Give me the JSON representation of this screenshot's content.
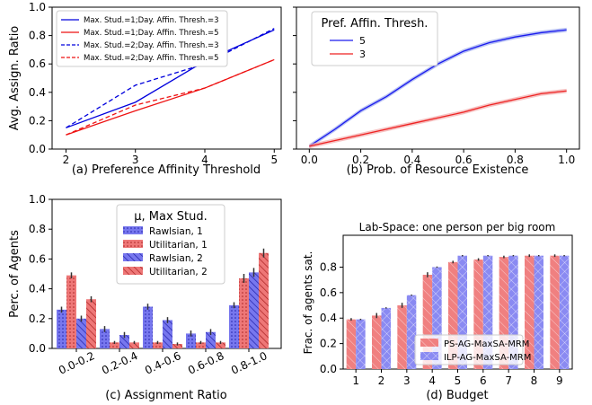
{
  "chart_data": [
    {
      "type": "line",
      "panel_label": "(a)",
      "xlabel": "(a) Preference Affinity Threshold",
      "ylabel": "Avg. Assign. Ratio",
      "xlim": [
        1.8,
        5.1
      ],
      "ylim": [
        0.0,
        1.0
      ],
      "xticks": [
        "2",
        "3",
        "4",
        "5"
      ],
      "yticks": [
        "0.0",
        "0.2",
        "0.4",
        "0.6",
        "0.8",
        "1.0"
      ],
      "x": [
        2,
        3,
        4,
        5
      ],
      "legend_position": "upper-left",
      "series": [
        {
          "name": "Max. Stud.=1;Day. Affin. Thresh.=3",
          "color": "#0000dd",
          "dash": "solid",
          "values": [
            0.15,
            0.33,
            0.62,
            0.84
          ]
        },
        {
          "name": "Max. Stud.=1;Day. Affin. Thresh.=5",
          "color": "#ee1111",
          "dash": "solid",
          "values": [
            0.1,
            0.27,
            0.43,
            0.63
          ]
        },
        {
          "name": "Max. Stud.=2;Day. Affin. Thresh.=3",
          "color": "#0000dd",
          "dash": "dashed",
          "values": [
            0.15,
            0.45,
            0.6,
            0.85
          ]
        },
        {
          "name": "Max. Stud.=2;Day. Affin. Thresh.=5",
          "color": "#ee1111",
          "dash": "dashed",
          "values": [
            0.1,
            0.31,
            0.43,
            0.63
          ]
        }
      ]
    },
    {
      "type": "line",
      "panel_label": "(b)",
      "xlabel": "(b) Prob. of Resource Existence",
      "legend_title": "Pref. Affin. Thresh.",
      "legend_position": "upper-left",
      "xlim": [
        -0.05,
        1.05
      ],
      "ylim": [
        0.0,
        1.0
      ],
      "xticks": [
        "0.0",
        "0.2",
        "0.4",
        "0.6",
        "0.8",
        "1.0"
      ],
      "x": [
        0.0,
        0.1,
        0.2,
        0.3,
        0.4,
        0.5,
        0.6,
        0.7,
        0.8,
        0.9,
        1.0
      ],
      "series": [
        {
          "name": "5",
          "color": "#1a1aee",
          "band": "#9aa6ee",
          "values": [
            0.02,
            0.14,
            0.27,
            0.37,
            0.49,
            0.6,
            0.69,
            0.75,
            0.79,
            0.82,
            0.84
          ]
        },
        {
          "name": "3",
          "color": "#ee2222",
          "band": "#f2aaaa",
          "values": [
            0.02,
            0.06,
            0.1,
            0.14,
            0.18,
            0.22,
            0.26,
            0.31,
            0.35,
            0.39,
            0.41
          ]
        }
      ]
    },
    {
      "type": "bar",
      "panel_label": "(c)",
      "xlabel": "(c) Assignment Ratio",
      "ylabel": "Perc. of Agents",
      "ylim": [
        0.0,
        1.0
      ],
      "yticks": [
        "0.0",
        "0.2",
        "0.4",
        "0.6",
        "0.8",
        "1.0"
      ],
      "categories": [
        "0.0-0.2",
        "0.2-0.4",
        "0.4-0.6",
        "0.6-0.8",
        "0.8-1.0"
      ],
      "legend_title": "μ, Max Stud.",
      "legend_position": "upper-center",
      "series": [
        {
          "name": "Rawlsian, 1",
          "color": "#7777ee",
          "hatch": "dots",
          "values": [
            0.26,
            0.13,
            0.28,
            0.1,
            0.29
          ],
          "err": [
            0.02,
            0.02,
            0.02,
            0.02,
            0.02
          ]
        },
        {
          "name": "Utilitarian, 1",
          "color": "#ee7777",
          "hatch": "dots",
          "values": [
            0.49,
            0.04,
            0.04,
            0.04,
            0.47
          ],
          "err": [
            0.02,
            0.01,
            0.01,
            0.01,
            0.03
          ]
        },
        {
          "name": "Rawlsian, 2",
          "color": "#7777ee",
          "hatch": "diag",
          "values": [
            0.2,
            0.09,
            0.19,
            0.11,
            0.51
          ],
          "err": [
            0.02,
            0.02,
            0.02,
            0.02,
            0.03
          ]
        },
        {
          "name": "Utilitarian, 2",
          "color": "#ee7777",
          "hatch": "diag",
          "values": [
            0.33,
            0.04,
            0.03,
            0.04,
            0.64
          ],
          "err": [
            0.02,
            0.01,
            0.01,
            0.01,
            0.03
          ]
        }
      ]
    },
    {
      "type": "bar",
      "panel_label": "(d)",
      "title": "Lab-Space: one person per big room",
      "xlabel": "(d) Budget",
      "ylabel": "Frac. of agents sat.",
      "ylim": [
        0.0,
        1.05
      ],
      "yticks": [
        "0.0",
        "0.2",
        "0.4",
        "0.6",
        "0.8"
      ],
      "categories": [
        "1",
        "2",
        "3",
        "4",
        "5",
        "6",
        "7",
        "8",
        "9"
      ],
      "legend_position": "lower-center",
      "series": [
        {
          "name": "PS-AG-MaxSA-MRM",
          "color": "#f08080",
          "hatch": "diag",
          "values": [
            0.39,
            0.42,
            0.5,
            0.74,
            0.84,
            0.86,
            0.88,
            0.89,
            0.89
          ],
          "err": [
            0.01,
            0.02,
            0.02,
            0.02,
            0.01,
            0.01,
            0.01,
            0.01,
            0.01
          ]
        },
        {
          "name": "ILP-AG-MaxSA-MRM",
          "color": "#8a8af2",
          "hatch": "cross",
          "values": [
            0.39,
            0.48,
            0.58,
            0.8,
            0.89,
            0.89,
            0.89,
            0.89,
            0.89
          ],
          "err": [
            0.005,
            0.005,
            0.005,
            0.005,
            0.005,
            0.005,
            0.005,
            0.005,
            0.005
          ]
        }
      ]
    }
  ]
}
